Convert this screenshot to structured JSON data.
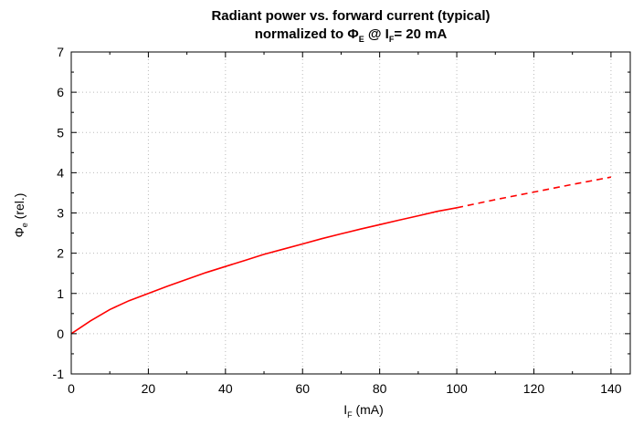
{
  "chart_data": {
    "type": "line",
    "title_line1": "Radiant power vs. forward current (typical)",
    "title_line2_prefix": "normalized to Φ",
    "title_line2_sub1": "E",
    "title_line2_mid": " @ I",
    "title_line2_sub2": "F",
    "title_line2_suffix": "= 20 mA",
    "xlabel_main": "I",
    "xlabel_sub": "F",
    "xlabel_unit": " (mA)",
    "ylabel_main": "Φ",
    "ylabel_sub": "e",
    "ylabel_unit": " (rel.)",
    "xlim": [
      0,
      145
    ],
    "ylim": [
      -1,
      7
    ],
    "xticks": [
      0,
      20,
      40,
      60,
      80,
      100,
      120,
      140
    ],
    "yticks": [
      -1,
      0,
      1,
      2,
      3,
      4,
      5,
      6,
      7
    ],
    "grid": true,
    "series": [
      {
        "style": "solid",
        "color": "#ff0000",
        "x": [
          0,
          5,
          10,
          15,
          20,
          25,
          30,
          35,
          40,
          45,
          50,
          55,
          60,
          65,
          70,
          75,
          80,
          85,
          90,
          95,
          100
        ],
        "y": [
          0,
          0.32,
          0.6,
          0.82,
          1.0,
          1.18,
          1.35,
          1.52,
          1.67,
          1.82,
          1.97,
          2.1,
          2.23,
          2.36,
          2.48,
          2.6,
          2.71,
          2.82,
          2.93,
          3.04,
          3.13
        ]
      },
      {
        "style": "dashed",
        "color": "#ff0000",
        "x": [
          100,
          110,
          120,
          130,
          140
        ],
        "y": [
          3.13,
          3.33,
          3.52,
          3.71,
          3.89
        ]
      }
    ]
  }
}
